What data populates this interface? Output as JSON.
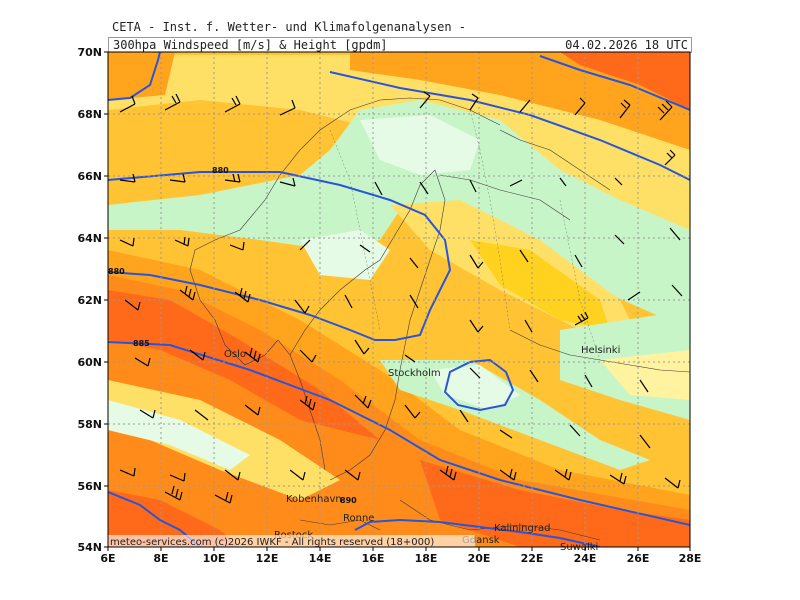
{
  "header": {
    "organization": "CETA - Inst. f. Wetter- und Klimafolgenanalysen -",
    "product": "300hpa Windspeed [m/s] & Height [gpdm]",
    "valid_time": "04.02.2026 18 UTC"
  },
  "map": {
    "lon_labels": [
      "6E",
      "8E",
      "10E",
      "12E",
      "14E",
      "16E",
      "18E",
      "20E",
      "22E",
      "24E",
      "26E",
      "28E"
    ],
    "lat_labels": [
      "70N",
      "68N",
      "66N",
      "64N",
      "62N",
      "60N",
      "58N",
      "56N",
      "54N"
    ],
    "cities": [
      {
        "name": "Oslo"
      },
      {
        "name": "Stockholm"
      },
      {
        "name": "Helsinki"
      },
      {
        "name": "Kobenhavn"
      },
      {
        "name": "Ronne"
      },
      {
        "name": "Rostock"
      },
      {
        "name": "Kaliningrad"
      },
      {
        "name": "Suwalki"
      },
      {
        "name": "Gdansk"
      }
    ],
    "height_contour_labels": [
      {
        "value": "880"
      },
      {
        "value": "880"
      },
      {
        "value": "885"
      },
      {
        "value": "890"
      }
    ],
    "colors": {
      "band_lightest": "#e6fbe6",
      "band_light_green": "#c8f5c8",
      "band_pale_yellow": "#fff3a0",
      "band_yellow": "#ffe066",
      "band_gold": "#ffc333",
      "band_orange": "#ffa41c",
      "band_deep_orange": "#ff8c1a",
      "band_red": "#ff6a1a",
      "contour": "#2a55d8",
      "coast": "#3a3a3a",
      "grid": "#999999",
      "barb": "#000000"
    }
  },
  "footer": {
    "credit": "meteo-services.com (c)2026 IWKF - All rights reserved (18+000)"
  }
}
